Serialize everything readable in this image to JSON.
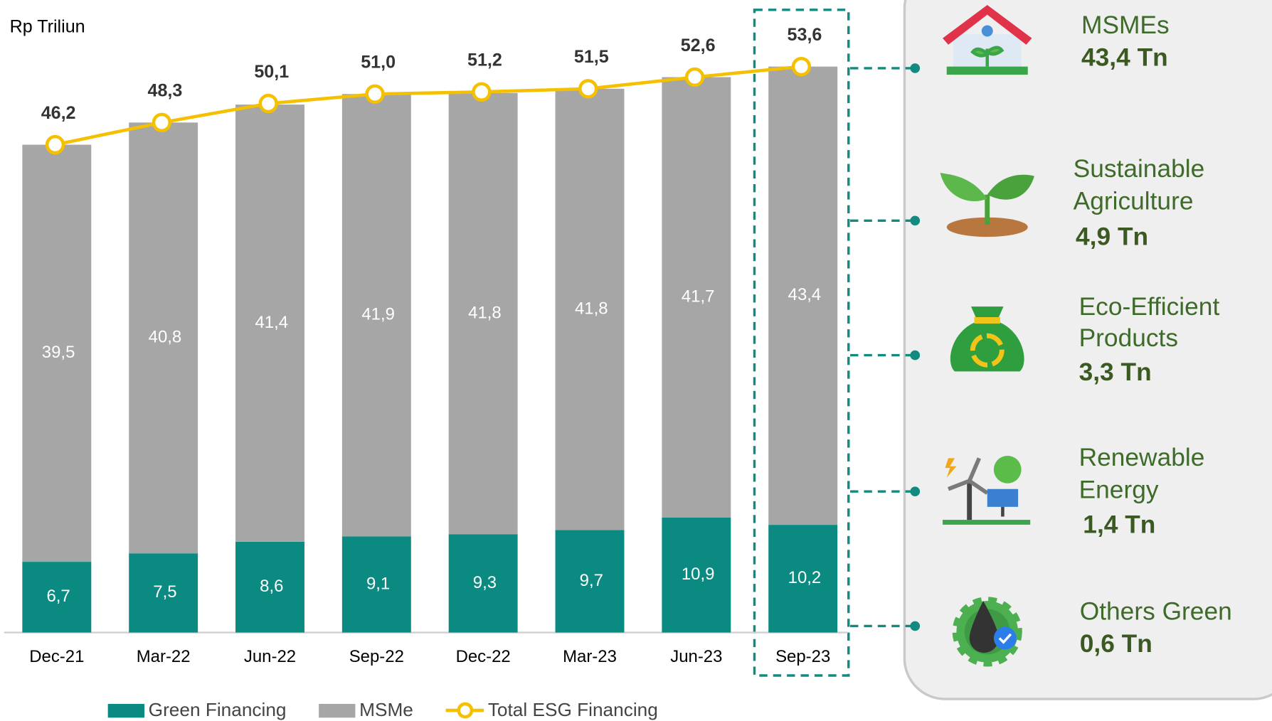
{
  "chart_data": {
    "type": "bar",
    "unit_label": "Rp Triliun",
    "categories": [
      "Dec-21",
      "Mar-22",
      "Jun-22",
      "Sep-22",
      "Dec-22",
      "Mar-23",
      "Jun-23",
      "Sep-23"
    ],
    "series": [
      {
        "name": "Green Financing",
        "type": "bar",
        "color": "#0a8a80",
        "values": [
          6.7,
          7.5,
          8.6,
          9.1,
          9.3,
          9.7,
          10.9,
          10.2
        ],
        "value_labels": [
          "6,7",
          "7,5",
          "8,6",
          "9,1",
          "9,3",
          "9,7",
          "10,9",
          "10,2"
        ]
      },
      {
        "name": "MSMe",
        "type": "bar",
        "color": "#a6a6a6",
        "values": [
          39.5,
          40.8,
          41.4,
          41.9,
          41.8,
          41.8,
          41.7,
          43.4
        ],
        "value_labels": [
          "39,5",
          "40,8",
          "41,4",
          "41,9",
          "41,8",
          "41,8",
          "41,7",
          "43,4"
        ]
      },
      {
        "name": "Total ESG Financing",
        "type": "line",
        "color": "#f5c000",
        "values": [
          46.2,
          48.3,
          50.1,
          51.0,
          51.2,
          51.5,
          52.6,
          53.6
        ],
        "value_labels": [
          "46,2",
          "48,3",
          "50,1",
          "51,0",
          "51,2",
          "51,5",
          "52,6",
          "53,6"
        ]
      }
    ],
    "legend": "bottom"
  },
  "panel": {
    "items": [
      {
        "label_lines": [
          "MSMEs"
        ],
        "value": "43,4 Tn"
      },
      {
        "label_lines": [
          "Sustainable",
          "Agriculture"
        ],
        "value": "4,9 Tn"
      },
      {
        "label_lines": [
          "Eco-Efficient",
          "Products"
        ],
        "value": "3,3 Tn"
      },
      {
        "label_lines": [
          "Renewable",
          "Energy"
        ],
        "value": "1,4 Tn"
      },
      {
        "label_lines": [
          "Others Green"
        ],
        "value": "0,6 Tn"
      }
    ]
  }
}
